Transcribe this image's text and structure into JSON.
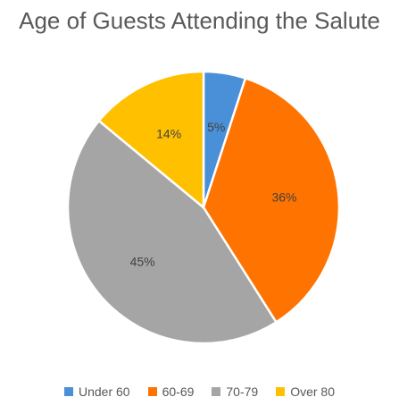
{
  "chart_data": {
    "type": "pie",
    "title": "Age of Guests Attending the Salute",
    "categories": [
      "Under 60",
      "60-69",
      "70-79",
      "Over 80"
    ],
    "values": [
      5,
      36,
      45,
      14
    ],
    "data_labels": [
      "5%",
      "36%",
      "45%",
      "14%"
    ],
    "colors": [
      "#4A90D9",
      "#FF7300",
      "#A5A5A5",
      "#FFC000"
    ],
    "legend_placement": "bottom",
    "start_angle": "12 o'clock, clockwise"
  }
}
